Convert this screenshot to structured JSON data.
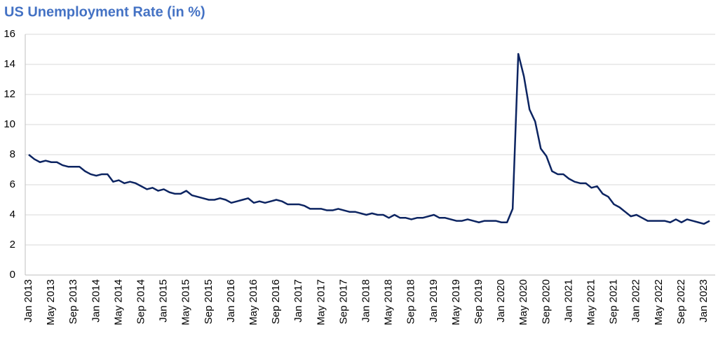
{
  "chart_data": {
    "type": "line",
    "title": "US Unemployment Rate (in %)",
    "categories": [
      "Jan 2013",
      null,
      null,
      null,
      "May 2013",
      null,
      null,
      null,
      "Sep 2013",
      null,
      null,
      null,
      "Jan 2014",
      null,
      null,
      null,
      "May 2014",
      null,
      null,
      null,
      "Sep 2014",
      null,
      null,
      null,
      "Jan 2015",
      null,
      null,
      null,
      "May 2015",
      null,
      null,
      null,
      "Sep 2015",
      null,
      null,
      null,
      "Jan 2016",
      null,
      null,
      null,
      "May 2016",
      null,
      null,
      null,
      "Sep 2016",
      null,
      null,
      null,
      "Jan 2017",
      null,
      null,
      null,
      "May 2017",
      null,
      null,
      null,
      "Sep 2017",
      null,
      null,
      null,
      "Jan 2018",
      null,
      null,
      null,
      "May 2018",
      null,
      null,
      null,
      "Sep 2018",
      null,
      null,
      null,
      "Jan 2019",
      null,
      null,
      null,
      "May 2019",
      null,
      null,
      null,
      "Sep 2019",
      null,
      null,
      null,
      "Jan 2020",
      null,
      null,
      null,
      "May 2020",
      null,
      null,
      null,
      "Sep 2020",
      null,
      null,
      null,
      "Jan 2021",
      null,
      null,
      null,
      "May 2021",
      null,
      null,
      null,
      "Sep 2021",
      null,
      null,
      null,
      "Jan 2022",
      null,
      null,
      null,
      "May 2022",
      null,
      null,
      null,
      "Sep 2022",
      null,
      null,
      null,
      "Jan 2023",
      null
    ],
    "values": [
      8.0,
      7.7,
      7.5,
      7.6,
      7.5,
      7.5,
      7.3,
      7.2,
      7.2,
      7.2,
      6.9,
      6.7,
      6.6,
      6.7,
      6.7,
      6.2,
      6.3,
      6.1,
      6.2,
      6.1,
      5.9,
      5.7,
      5.8,
      5.6,
      5.7,
      5.5,
      5.4,
      5.4,
      5.6,
      5.3,
      5.2,
      5.1,
      5.0,
      5.0,
      5.1,
      5.0,
      4.8,
      4.9,
      5.0,
      5.1,
      4.8,
      4.9,
      4.8,
      4.9,
      5.0,
      4.9,
      4.7,
      4.7,
      4.7,
      4.6,
      4.4,
      4.4,
      4.4,
      4.3,
      4.3,
      4.4,
      4.3,
      4.2,
      4.2,
      4.1,
      4.0,
      4.1,
      4.0,
      4.0,
      3.8,
      4.0,
      3.8,
      3.8,
      3.7,
      3.8,
      3.8,
      3.9,
      4.0,
      3.8,
      3.8,
      3.7,
      3.6,
      3.6,
      3.7,
      3.6,
      3.5,
      3.6,
      3.6,
      3.6,
      3.5,
      3.5,
      4.4,
      14.7,
      13.2,
      11.0,
      10.2,
      8.4,
      7.9,
      6.9,
      6.7,
      6.7,
      6.4,
      6.2,
      6.1,
      6.1,
      5.8,
      5.9,
      5.4,
      5.2,
      4.7,
      4.5,
      4.2,
      3.9,
      4.0,
      3.8,
      3.6,
      3.6,
      3.6,
      3.6,
      3.5,
      3.7,
      3.5,
      3.7,
      3.6,
      3.5,
      3.4,
      3.6
    ],
    "color": "#0c2461",
    "ylim": [
      0,
      16
    ],
    "yticks": [
      0,
      2,
      4,
      6,
      8,
      10,
      12,
      14,
      16
    ],
    "grid": true
  }
}
